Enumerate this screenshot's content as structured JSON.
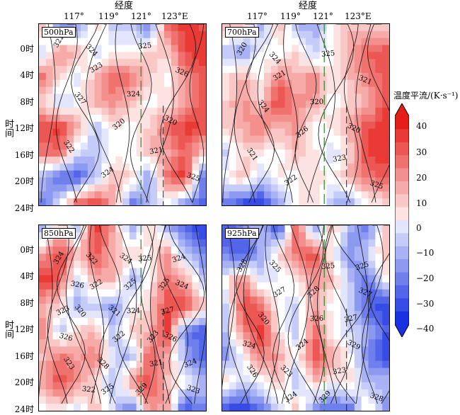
{
  "figure": {
    "top_axis_title_left": "经度",
    "top_axis_title_right": "经度",
    "y_axis_title_top": "时间",
    "y_axis_title_bottom": "时间",
    "lon_ticks": [
      "117°",
      "119°",
      "121°",
      "123°E"
    ],
    "time_ticks": [
      "0时",
      "4时",
      "8时",
      "12时",
      "16时",
      "20时",
      "24时"
    ]
  },
  "colorbar": {
    "title": "温度平流/(K·s⁻¹)",
    "ticks": [
      "40",
      "30",
      "20",
      "10",
      "0",
      "−10",
      "−20",
      "−30",
      "−40"
    ],
    "min": -40,
    "max": 40,
    "step": 5,
    "warm_color": "#e8141b",
    "cold_color": "#1a33e0"
  },
  "chart_data": [
    {
      "type": "heatmap",
      "level": "500hPa",
      "x_range_lon": [
        115.5,
        124.5
      ],
      "y_range_hour": [
        -2,
        24
      ],
      "contour_labels": [
        "322",
        "323",
        "324",
        "320",
        "322",
        "324",
        "325",
        "326",
        "327",
        "320",
        "321",
        "325",
        "324"
      ],
      "pattern": [
        [
          0.3,
          -0.5,
          -0.4,
          0.2,
          -0.3,
          -0.2,
          -0.6,
          0.6,
          0.9,
          0.8
        ],
        [
          -0.2,
          0.5,
          0.3,
          -0.2,
          0.1,
          0.0,
          0.3,
          0.2,
          0.8,
          0.9
        ],
        [
          0.6,
          0.2,
          -0.1,
          0.3,
          0.7,
          0.6,
          0.2,
          0.0,
          0.5,
          0.7
        ],
        [
          0.2,
          -0.3,
          0.0,
          0.4,
          0.5,
          0.3,
          0.0,
          0.1,
          0.4,
          0.8
        ],
        [
          0.8,
          0.9,
          0.4,
          -0.3,
          0.1,
          0.0,
          0.2,
          0.6,
          0.9,
          0.8
        ],
        [
          0.6,
          0.7,
          -0.2,
          -0.3,
          0.0,
          -0.1,
          0.3,
          0.4,
          0.7,
          0.3
        ],
        [
          -0.3,
          -0.8,
          -0.8,
          -0.3,
          0.3,
          0.2,
          -0.5,
          0.6,
          0.9,
          -0.6
        ],
        [
          -0.6,
          -0.2,
          0.6,
          0.8,
          0.4,
          -0.6,
          -0.3,
          0.0,
          -0.4,
          -0.7
        ]
      ]
    },
    {
      "type": "heatmap",
      "level": "700hPa",
      "x_range_lon": [
        115.5,
        124.5
      ],
      "y_range_hour": [
        -2,
        24
      ],
      "contour_labels": [
        "320",
        "321",
        "320",
        "320",
        "321",
        "322",
        "325",
        "321",
        "324",
        "326",
        "323",
        "325",
        "324"
      ],
      "pattern": [
        [
          0.3,
          0.2,
          -0.4,
          0.3,
          -0.3,
          -0.4,
          0.0,
          0.3,
          0.2,
          0.2
        ],
        [
          -0.3,
          -0.5,
          0.0,
          -0.1,
          0.2,
          -0.3,
          0.1,
          0.4,
          0.7,
          0.8
        ],
        [
          0.1,
          0.4,
          0.0,
          0.6,
          0.3,
          0.6,
          0.0,
          0.3,
          0.6,
          0.7
        ],
        [
          0.2,
          0.5,
          0.2,
          0.9,
          0.5,
          0.4,
          0.0,
          0.2,
          0.3,
          0.8
        ],
        [
          0.2,
          0.4,
          0.6,
          0.3,
          0.5,
          -0.1,
          0.1,
          0.4,
          0.8,
          0.9
        ],
        [
          -0.2,
          0.2,
          0.1,
          0.0,
          0.3,
          0.1,
          -0.2,
          0.2,
          0.9,
          0.9
        ],
        [
          0.0,
          0.3,
          -0.2,
          0.1,
          0.0,
          0.2,
          0.0,
          0.4,
          0.6,
          0.7
        ],
        [
          -0.6,
          -0.8,
          -0.9,
          -0.4,
          0.1,
          0.2,
          -0.3,
          -0.4,
          0.1,
          0.2
        ]
      ]
    },
    {
      "type": "heatmap",
      "level": "850hPa",
      "x_range_lon": [
        115.5,
        124.5
      ],
      "y_range_hour": [
        -2,
        24
      ],
      "contour_labels": [
        "324",
        "322",
        "324",
        "326",
        "323",
        "325",
        "325",
        "324",
        "320",
        "322",
        "321",
        "323",
        "322",
        "325",
        "327",
        "326",
        "328",
        "329",
        "324",
        "326",
        "321",
        "323",
        "324",
        "322",
        "324",
        "325",
        "323"
      ],
      "pattern": [
        [
          -0.4,
          0.2,
          -0.3,
          0.9,
          0.4,
          -0.4,
          0.2,
          -0.3,
          -0.7,
          -0.9
        ],
        [
          0.4,
          0.9,
          0.3,
          0.8,
          0.3,
          0.2,
          0.0,
          0.5,
          -0.3,
          -0.6
        ],
        [
          0.9,
          0.7,
          -0.2,
          0.3,
          0.4,
          -0.4,
          0.0,
          0.6,
          0.4,
          -0.2
        ],
        [
          0.4,
          0.2,
          -0.4,
          -0.2,
          -0.5,
          0.0,
          0.2,
          0.8,
          0.9,
          0.3
        ],
        [
          0.5,
          -0.3,
          0.2,
          0.3,
          -0.3,
          0.2,
          0.3,
          0.9,
          -0.6,
          -0.8
        ],
        [
          0.3,
          0.6,
          0.4,
          0.6,
          -0.2,
          -0.4,
          0.7,
          0.4,
          -0.4,
          -0.8
        ],
        [
          0.4,
          0.8,
          0.5,
          0.1,
          -0.3,
          0.5,
          0.8,
          0.3,
          0.0,
          -0.3
        ],
        [
          0.0,
          0.2,
          -0.1,
          0.3,
          -0.2,
          -0.6,
          0.5,
          0.4,
          -0.8,
          -0.6
        ]
      ]
    },
    {
      "type": "heatmap",
      "level": "925hPa",
      "x_range_lon": [
        115.5,
        124.5
      ],
      "y_range_hour": [
        -2,
        24
      ],
      "contour_labels": [
        "328",
        "327",
        "326",
        "329",
        "326",
        "324",
        "325",
        "327",
        "320",
        "324",
        "323",
        "328",
        "325",
        "328",
        "327",
        "324",
        "323",
        "329",
        "325"
      ],
      "pattern": [
        [
          -0.8,
          -0.6,
          -0.3,
          -0.9,
          0.8,
          -0.5,
          0.3,
          -0.4,
          -0.6,
          0.2
        ],
        [
          -0.6,
          -0.9,
          -0.4,
          0.2,
          0.6,
          0.8,
          0.0,
          -0.6,
          -0.2,
          0.3
        ],
        [
          0.0,
          0.6,
          -0.2,
          -0.1,
          0.1,
          0.5,
          0.3,
          -0.3,
          -0.7,
          0.0
        ],
        [
          -0.2,
          0.8,
          0.6,
          0.0,
          -0.2,
          0.4,
          0.0,
          -0.2,
          -0.8,
          -0.9
        ],
        [
          -0.3,
          0.6,
          0.9,
          0.1,
          -0.3,
          0.7,
          0.0,
          -0.2,
          -0.4,
          -0.8
        ],
        [
          -0.5,
          0.0,
          0.6,
          0.4,
          0.0,
          0.8,
          0.4,
          0.0,
          -0.6,
          -0.9
        ],
        [
          0.2,
          -0.2,
          0.0,
          0.3,
          -0.4,
          0.3,
          0.0,
          0.2,
          -0.4,
          -0.3
        ],
        [
          -0.8,
          -0.9,
          -0.6,
          -0.2,
          0.3,
          -0.5,
          -0.7,
          -0.6,
          0.2,
          -0.5
        ]
      ]
    }
  ]
}
